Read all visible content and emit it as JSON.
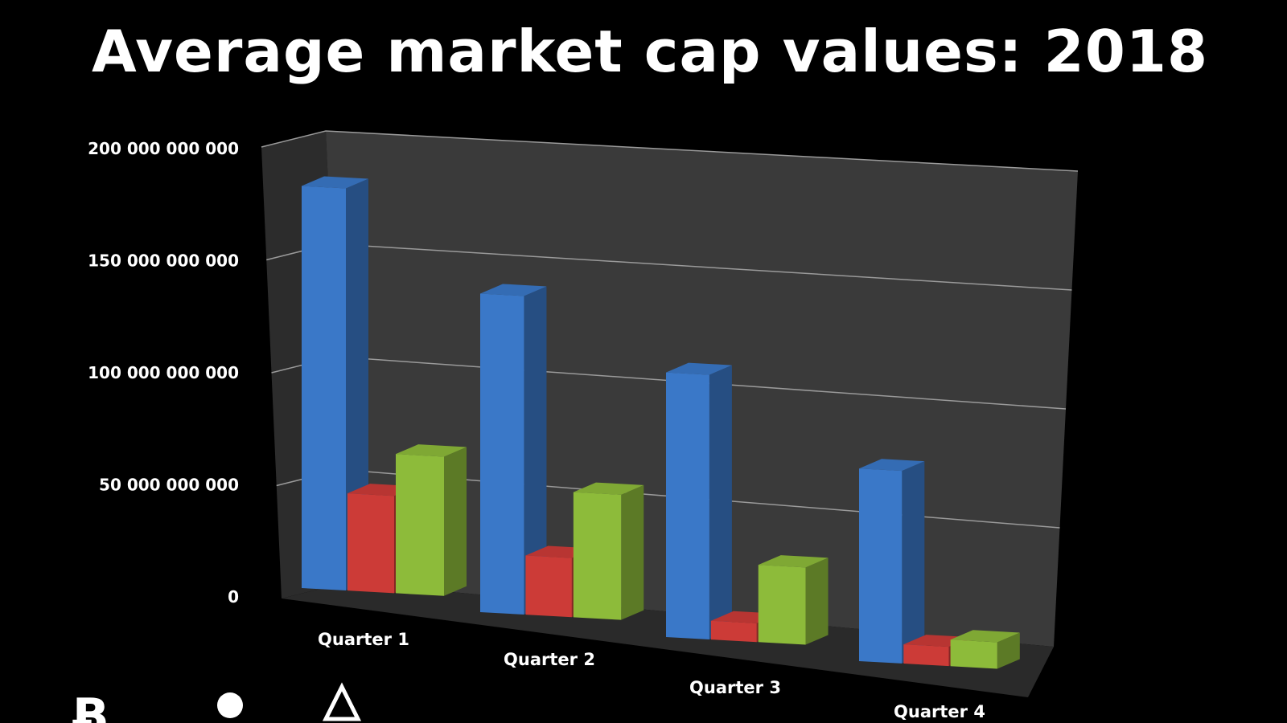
{
  "colors": {
    "background": "#000000",
    "wall": "#3a3a3a",
    "side_wall": "#2c2c2c",
    "floor": "#2a2a2a",
    "gridline": "#9a9a9a"
  },
  "chart_data": {
    "type": "bar",
    "style": "3d-clustered-column",
    "title": "Average market cap values: 2018",
    "xlabel": "",
    "ylabel": "",
    "categories": [
      "Quarter 1",
      "Quarter 2",
      "Quarter 3",
      "Quarter 4"
    ],
    "ylim": [
      0,
      200000000000
    ],
    "yticks": [
      {
        "value": 0,
        "label": "0"
      },
      {
        "value": 50000000000,
        "label": "50 000 000 000"
      },
      {
        "value": 100000000000,
        "label": "100 000 000 000"
      },
      {
        "value": 150000000000,
        "label": "150 000 000 000"
      },
      {
        "value": 200000000000,
        "label": "200 000 000 000"
      }
    ],
    "grid": true,
    "legend": "bottom-left",
    "series": [
      {
        "color": "#3a78c8",
        "icon": "bitcoin-icon",
        "values": [
          182000000000,
          140000000000,
          113000000000,
          80000000000
        ]
      },
      {
        "color": "#cc3b37",
        "icon": "circle-icon",
        "values": [
          44000000000,
          26000000000,
          8000000000,
          8000000000
        ]
      },
      {
        "color": "#8dbb3a",
        "icon": "ethereum-icon",
        "values": [
          63000000000,
          55000000000,
          33000000000,
          11000000000
        ]
      }
    ]
  }
}
